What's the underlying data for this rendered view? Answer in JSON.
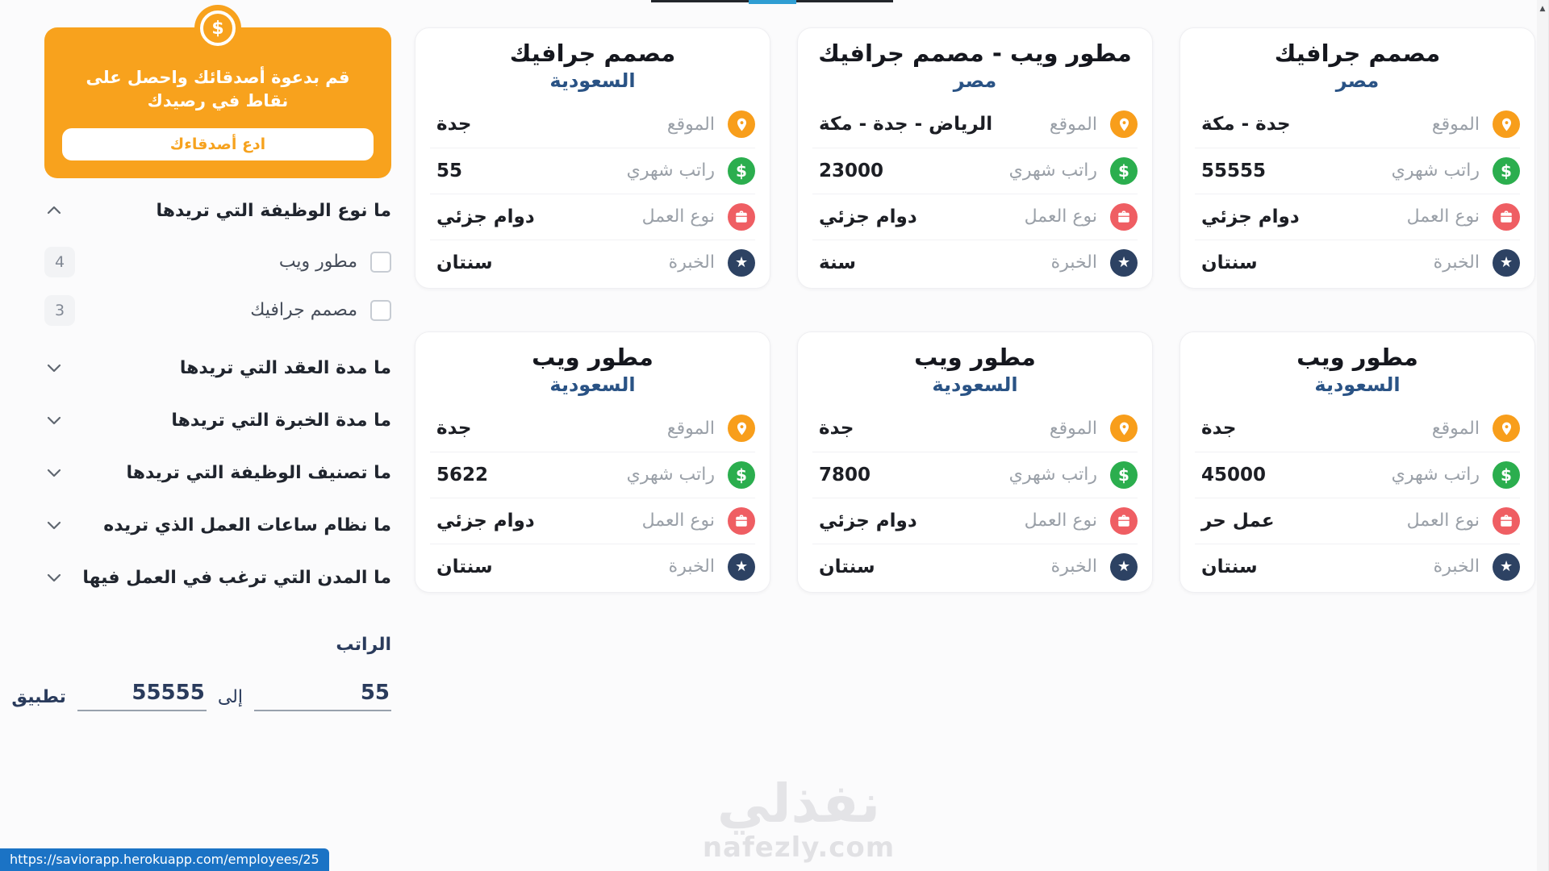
{
  "card_row_labels": {
    "location": "الموقع",
    "salary": "راتب شهري",
    "work_type": "نوع العمل",
    "experience": "الخبرة"
  },
  "cards": [
    {
      "title": "مصمم جرافيك",
      "country": "مصر",
      "location": "جدة - مكة",
      "salary": "55555",
      "work_type": "دوام جزئي",
      "experience": "سنتان"
    },
    {
      "title": "مطور ويب - مصمم جرافيك",
      "country": "مصر",
      "location": "الرياض - جدة - مكة",
      "salary": "23000",
      "work_type": "دوام جزئي",
      "experience": "سنة"
    },
    {
      "title": "مصمم جرافيك",
      "country": "السعودية",
      "location": "جدة",
      "salary": "55",
      "work_type": "دوام جزئي",
      "experience": "سنتان"
    },
    {
      "title": "مطور ويب",
      "country": "السعودية",
      "location": "جدة",
      "salary": "45000",
      "work_type": "عمل حر",
      "experience": "سنتان"
    },
    {
      "title": "مطور ويب",
      "country": "السعودية",
      "location": "جدة",
      "salary": "7800",
      "work_type": "دوام جزئي",
      "experience": "سنتان"
    },
    {
      "title": "مطور ويب",
      "country": "السعودية",
      "location": "جدة",
      "salary": "5622",
      "work_type": "دوام جزئي",
      "experience": "سنتان"
    }
  ],
  "sidebar": {
    "invite_banner": {
      "icon_symbol": "$",
      "text": "قم بدعوة أصدقائك واحصل على نقاط في رصيدك",
      "button": "ادع أصدقاءك"
    },
    "filters": [
      {
        "title": "ما نوع الوظيفة التي تريدها",
        "expanded": true,
        "options": [
          {
            "label": "مطور ويب",
            "count": "4",
            "checked": false
          },
          {
            "label": "مصمم جرافيك",
            "count": "3",
            "checked": false
          }
        ]
      },
      {
        "title": "ما مدة العقد التي تريدها",
        "expanded": false,
        "options": []
      },
      {
        "title": "ما مدة الخبرة التي تريدها",
        "expanded": false,
        "options": []
      },
      {
        "title": "ما تصنيف الوظيفة التي تريدها",
        "expanded": false,
        "options": []
      },
      {
        "title": "ما نظام ساعات العمل الذي تريده",
        "expanded": false,
        "options": []
      },
      {
        "title": "ما المدن التي ترغب في العمل فيها",
        "expanded": false,
        "options": []
      }
    ],
    "salary_filter": {
      "title": "الراتب",
      "min": "55",
      "to_label": "إلى",
      "max": "55555",
      "apply": "تطبيق"
    }
  },
  "watermark": {
    "title": "نفذلي",
    "subtitle": "nafezly.com"
  },
  "status_bar": {
    "url": "https://saviorapp.herokuapp.com/employees/25"
  },
  "colors": {
    "location_icon": "#f89e1b",
    "salary_icon": "#2bae4e",
    "work_type_icon": "#ef5e63",
    "experience_icon": "#2d4263",
    "banner_orange": "#f8a21d",
    "country_blue": "#2a5385",
    "status_bar_blue": "#1b73c5",
    "progress_blue": "#2f9ed3"
  }
}
